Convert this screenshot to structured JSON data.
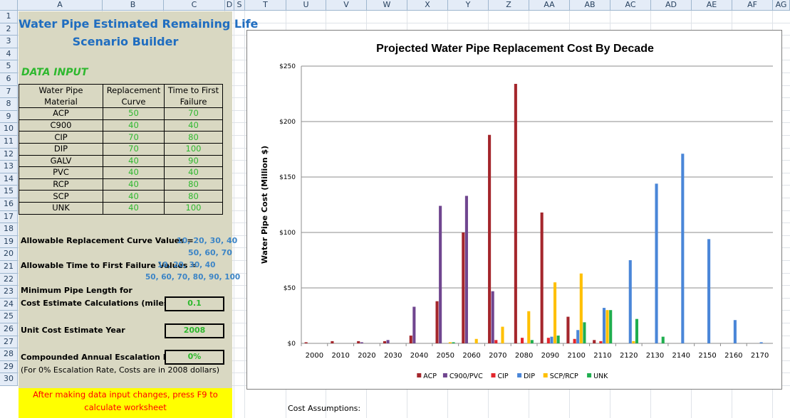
{
  "columns": [
    "A",
    "B",
    "C",
    "D",
    "S",
    "T",
    "U",
    "V",
    "W",
    "X",
    "Y",
    "Z",
    "AA",
    "AB",
    "AC",
    "AD",
    "AE",
    "AF",
    "AG"
  ],
  "rows": [
    "1",
    "2",
    "3",
    "4",
    "5",
    "6",
    "7",
    "8",
    "9",
    "10",
    "11",
    "12",
    "13",
    "14",
    "15",
    "16",
    "17",
    "18",
    "19",
    "20",
    "21",
    "22",
    "23",
    "24",
    "25",
    "26",
    "27",
    "28",
    "29",
    "30"
  ],
  "sheet": {
    "title_line1": "Water Pipe Estimated Remaining Life",
    "title_line2": "Scenario Builder",
    "data_input_label": "DATA INPUT",
    "table_headers": [
      [
        "Water Pipe",
        "Replacement",
        "Time to First"
      ],
      [
        "Material",
        "Curve",
        "Failure"
      ]
    ],
    "materials": [
      {
        "name": "ACP",
        "curve": "50",
        "failure": "70"
      },
      {
        "name": "C900",
        "curve": "40",
        "failure": "40"
      },
      {
        "name": "CIP",
        "curve": "70",
        "failure": "80"
      },
      {
        "name": "DIP",
        "curve": "70",
        "failure": "100"
      },
      {
        "name": "GALV",
        "curve": "40",
        "failure": "90"
      },
      {
        "name": "PVC",
        "curve": "40",
        "failure": "40"
      },
      {
        "name": "RCP",
        "curve": "40",
        "failure": "80"
      },
      {
        "name": "SCP",
        "curve": "40",
        "failure": "80"
      },
      {
        "name": "UNK",
        "curve": "40",
        "failure": "100"
      }
    ],
    "allowable_curve_label": "Allowable Replacement Curve Values =",
    "allowable_curve_values_1": "10, 20, 30, 40",
    "allowable_curve_values_2": "50, 60, 70",
    "allowable_failure_label": "Allowable Time to First Failure Values =",
    "allowable_failure_values_1": "10, 20, 30, 40",
    "allowable_failure_values_2": "50, 60, 70, 80, 90, 100",
    "min_length_label_1": "Minimum Pipe Length for",
    "min_length_label_2": "Cost Estimate Calculations (miles)",
    "min_length_value": "0.1",
    "unit_cost_year_label": "Unit Cost Estimate Year",
    "unit_cost_year_value": "2008",
    "escalation_label": "Compounded Annual Escalation Rate",
    "escalation_value": "0%",
    "escalation_note": "(For 0% Escalation Rate, Costs are in 2008 dollars)",
    "f9_note": "After making data input changes, press F9 to calculate worksheet",
    "cost_assumptions": "Cost Assumptions:"
  },
  "chart_data": {
    "type": "bar",
    "title": "Projected Water Pipe Replacement Cost By Decade",
    "ylabel": "Water Pipe Cost (Million $)",
    "xlabel": "",
    "ylim": [
      0,
      250
    ],
    "yticks": [
      "$0",
      "$50",
      "$100",
      "$150",
      "$200",
      "$250"
    ],
    "grid": true,
    "legend_position": "bottom",
    "categories": [
      "2000",
      "2010",
      "2020",
      "2030",
      "2040",
      "2050",
      "2060",
      "2070",
      "2080",
      "2090",
      "2100",
      "2110",
      "2120",
      "2130",
      "2140",
      "2150",
      "2160",
      "2170"
    ],
    "series": [
      {
        "name": "ACP",
        "color": "#a4262c",
        "values": [
          1,
          2,
          2,
          2,
          7,
          38,
          100,
          188,
          234,
          118,
          24,
          3,
          0,
          0,
          0,
          0,
          0,
          0
        ]
      },
      {
        "name": "C900/PVC",
        "color": "#70468f",
        "values": [
          0,
          0,
          1,
          3,
          33,
          124,
          133,
          47,
          0,
          0,
          0,
          0,
          0,
          0,
          0,
          0,
          0,
          0
        ]
      },
      {
        "name": "CIP",
        "color": "#e3262c",
        "values": [
          0,
          0,
          0,
          0,
          0,
          0,
          0,
          3,
          5,
          5,
          4,
          2,
          0,
          0,
          0,
          0,
          0,
          0
        ]
      },
      {
        "name": "DIP",
        "color": "#4a86d8",
        "values": [
          0,
          0,
          0,
          0,
          0,
          0,
          0,
          0,
          0,
          6,
          12,
          32,
          75,
          144,
          171,
          94,
          21,
          1
        ]
      },
      {
        "name": "SCP/RCP",
        "color": "#ffc000",
        "values": [
          0,
          0,
          0,
          0,
          0,
          1,
          4,
          15,
          29,
          55,
          63,
          30,
          2,
          0,
          0,
          0,
          0,
          0
        ]
      },
      {
        "name": "UNK",
        "color": "#1fae4f",
        "values": [
          0,
          0,
          0,
          0,
          0,
          1,
          0,
          0,
          3,
          7,
          19,
          30,
          22,
          6,
          0,
          0,
          0,
          0
        ]
      }
    ]
  }
}
